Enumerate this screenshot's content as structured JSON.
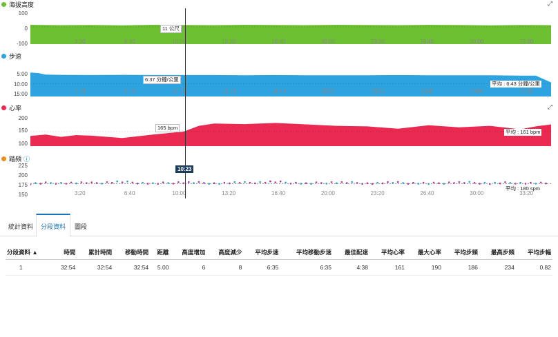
{
  "colors": {
    "elevation": "#6cc031",
    "pace": "#2da3e0",
    "heart": "#ea2a50",
    "cadence": "#f08c1e"
  },
  "x_ticks": [
    "3:20",
    "6:40",
    "10:00",
    "13:20",
    "16:40",
    "20:00",
    "23:20",
    "26:40",
    "30:00",
    "33:20"
  ],
  "charts": {
    "elevation": {
      "title": "海拔高度",
      "yticks": [
        "100",
        "0",
        "-100"
      ],
      "hover": "11 公尺"
    },
    "pace": {
      "title": "步速",
      "yticks": [
        "5:00",
        "10:00",
        "15:00"
      ],
      "hover": "6:37 分鐘/公里",
      "avg": "平均 : 6:43 分鐘/公里"
    },
    "heart": {
      "title": "心率",
      "yticks": [
        "200",
        "150",
        "100"
      ],
      "hover": "165 bpm",
      "avg": "平均 : 161 bpm"
    },
    "cadence": {
      "title": "踏頻",
      "yticks": [
        "225",
        "200",
        "175",
        "150"
      ],
      "avg": "平均 : 180 spm"
    }
  },
  "cursor_time": "10:23",
  "tabs": [
    "統計資料",
    "分段資料",
    "圖段"
  ],
  "table": {
    "headers": [
      "分段資料 ▲",
      "時間",
      "累計時間",
      "移動時間",
      "距離",
      "高度增加",
      "高度減少",
      "平均步速",
      "平均移動步速",
      "最佳配速",
      "平均心率",
      "最大心率",
      "平均步頻",
      "最高步頻",
      "平均步幅"
    ],
    "rows": [
      [
        "1",
        "32:54",
        "32:54",
        "32:54",
        "5.00",
        "6",
        "8",
        "6:35",
        "6:35",
        "4:38",
        "161",
        "190",
        "186",
        "234",
        "0.82"
      ]
    ]
  },
  "chart_data": [
    {
      "type": "area",
      "title": "海拔高度",
      "ylim": [
        -100,
        100
      ],
      "x": [
        0,
        2,
        4,
        6,
        8,
        10,
        12,
        14,
        16,
        18,
        20,
        22,
        24,
        26,
        28,
        30,
        32,
        34
      ],
      "y": [
        12,
        10,
        11,
        9,
        12,
        11,
        10,
        12,
        11,
        10,
        12,
        11,
        10,
        12,
        11,
        9,
        11,
        10
      ]
    },
    {
      "type": "area",
      "title": "步速",
      "ylim": [
        5,
        15
      ],
      "x": [
        0,
        0.5,
        1,
        2,
        4,
        6,
        8,
        10,
        12,
        14,
        16,
        18,
        20,
        22,
        24,
        26,
        28,
        30,
        32,
        33,
        34
      ],
      "y": [
        5.6,
        5.8,
        6.4,
        6.5,
        6.6,
        6.5,
        6.6,
        6.6,
        6.6,
        6.7,
        6.6,
        6.7,
        6.7,
        6.7,
        6.6,
        6.7,
        6.7,
        6.7,
        6.8,
        6.8,
        9.5
      ]
    },
    {
      "type": "area",
      "title": "心率",
      "ylim": [
        100,
        200
      ],
      "x": [
        0,
        1,
        2,
        3,
        4,
        6,
        8,
        10,
        11,
        12,
        14,
        16,
        18,
        20,
        22,
        24,
        26,
        28,
        30,
        32,
        33,
        34
      ],
      "y": [
        135,
        140,
        132,
        138,
        136,
        128,
        140,
        150,
        170,
        178,
        176,
        180,
        175,
        170,
        168,
        160,
        172,
        165,
        170,
        158,
        168,
        175
      ]
    },
    {
      "type": "scatter",
      "title": "踏頻",
      "ylim": [
        150,
        225
      ],
      "x": [
        0,
        2,
        4,
        6,
        8,
        10,
        12,
        14,
        16,
        18,
        20,
        22,
        24,
        26,
        28,
        30,
        32,
        34
      ],
      "y": [
        180,
        182,
        181,
        184,
        180,
        183,
        181,
        182,
        184,
        180,
        183,
        181,
        182,
        180,
        183,
        181,
        182,
        180
      ]
    }
  ]
}
